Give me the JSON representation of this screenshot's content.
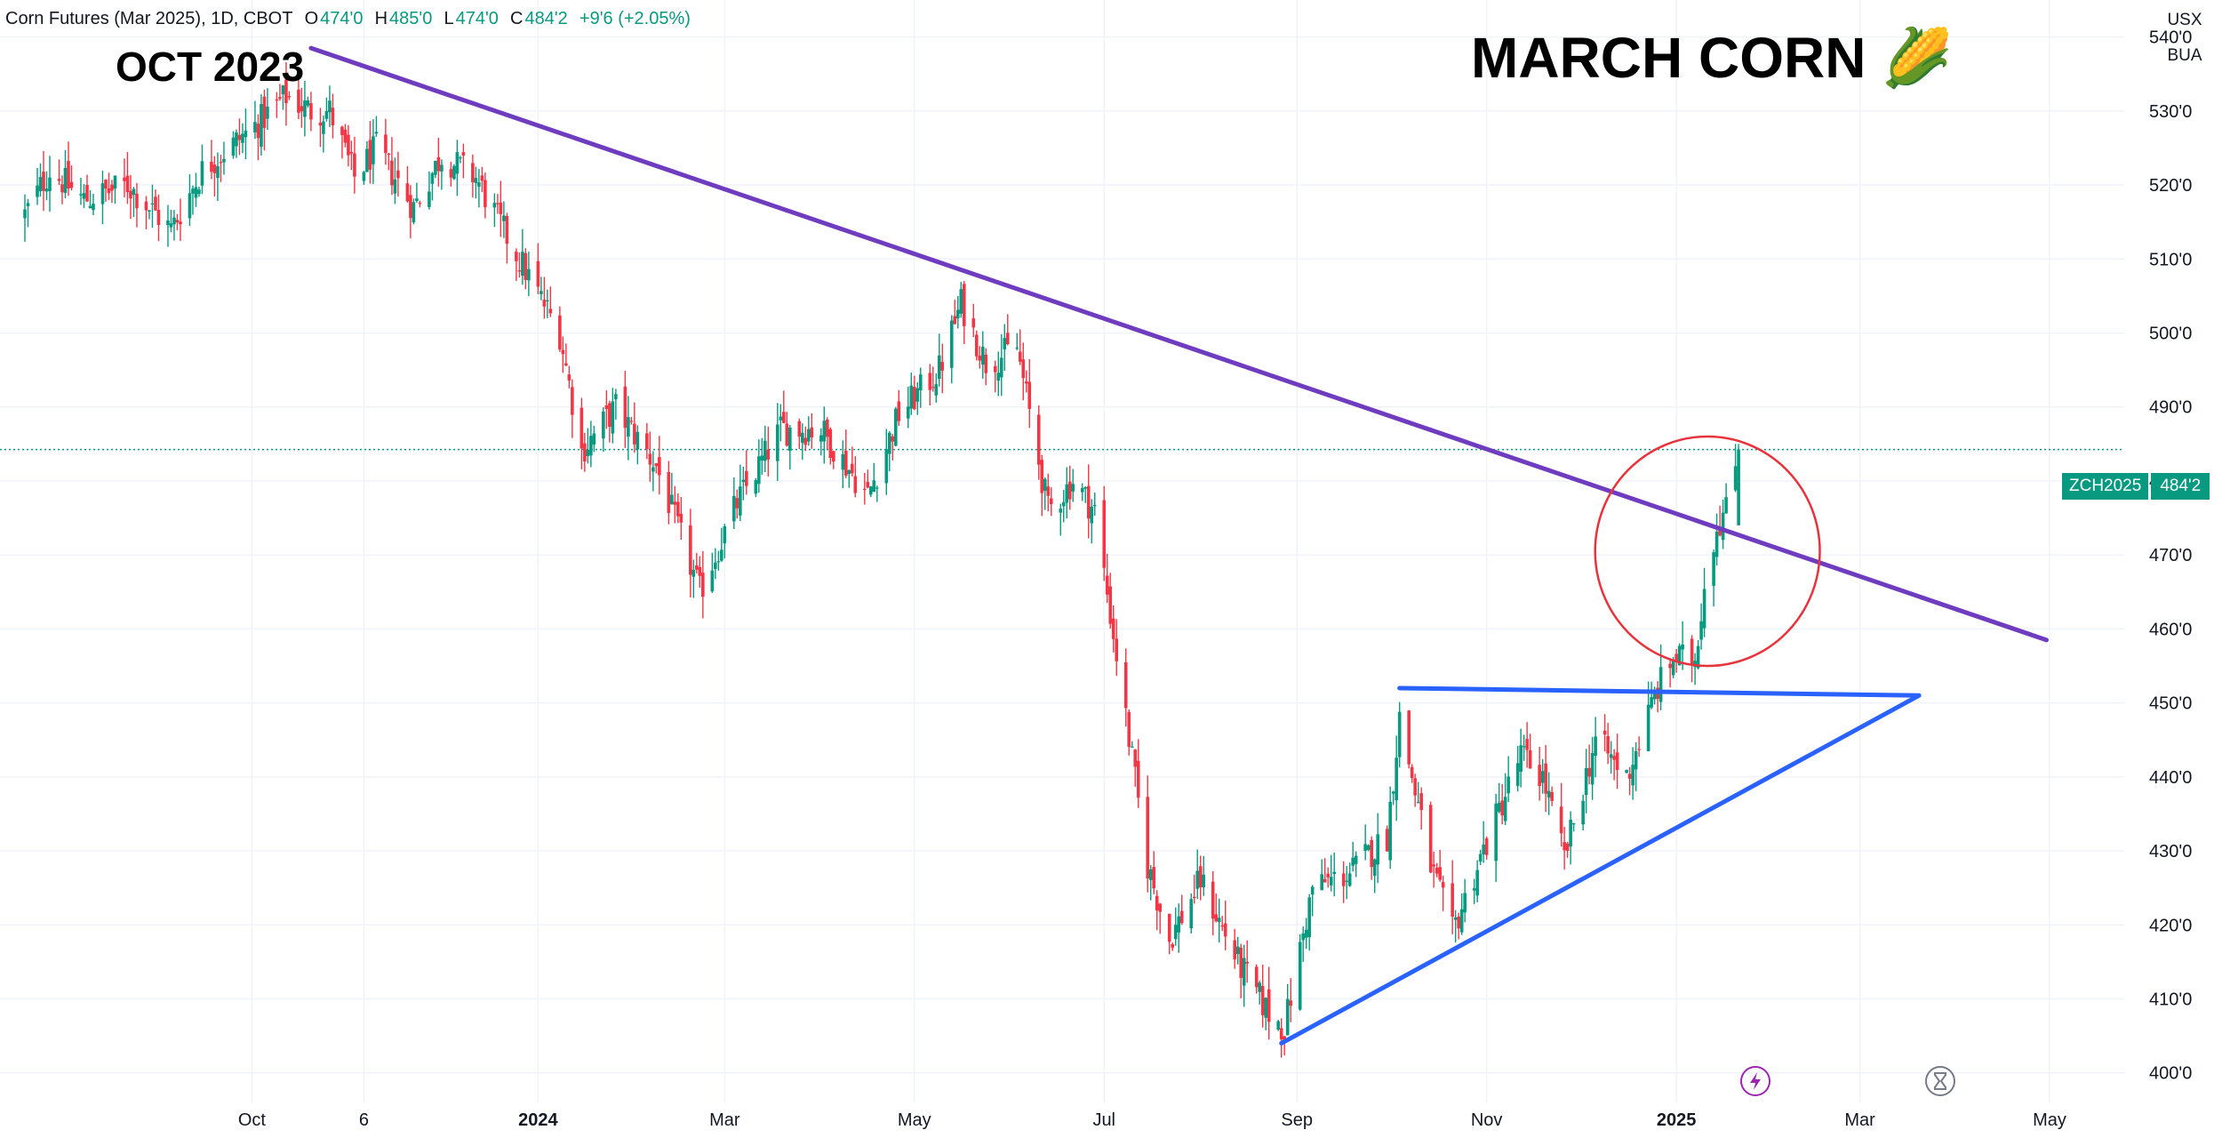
{
  "header": {
    "symbol_text": "Corn Futures (Mar 2025), 1D, CBOT",
    "o_label": "O",
    "o_value": "474'0",
    "h_label": "H",
    "h_value": "485'0",
    "l_label": "L",
    "l_value": "474'0",
    "c_label": "C",
    "c_value": "484'2",
    "change": "+9'6 (+2.05%)"
  },
  "top_right": {
    "currency": "USX",
    "unit": "BUA"
  },
  "annotations": {
    "left": "OCT 2023",
    "right": "MARCH CORN",
    "right_emoji": "🌽"
  },
  "price_tag": {
    "symbol": "ZCH2025",
    "value": "484'2"
  },
  "colors": {
    "up": "#089981",
    "down": "#f23645",
    "trend_purple": "#6f3cc0",
    "trend_blue": "#2962ff",
    "circle": "#e8323c",
    "grid": "#f0f3fa",
    "text": "#131722"
  },
  "icons": {
    "flash": "lightning-icon",
    "hourglass": "hourglass-icon"
  },
  "chart_data": {
    "type": "candlestick",
    "title": "Corn Futures (Mar 2025), 1D, CBOT",
    "xlabel": "",
    "ylabel": "",
    "ylim": [
      396,
      545
    ],
    "y_ticks": [
      {
        "v": 540,
        "label": "540'0"
      },
      {
        "v": 530,
        "label": "530'0"
      },
      {
        "v": 520,
        "label": "520'0"
      },
      {
        "v": 510,
        "label": "510'0"
      },
      {
        "v": 500,
        "label": "500'0"
      },
      {
        "v": 490,
        "label": "490'0"
      },
      {
        "v": 480,
        "label": "480'0"
      },
      {
        "v": 470,
        "label": "470'0"
      },
      {
        "v": 460,
        "label": "460'0"
      },
      {
        "v": 450,
        "label": "450'0"
      },
      {
        "v": 440,
        "label": "440'0"
      },
      {
        "v": 430,
        "label": "430'0"
      },
      {
        "v": 420,
        "label": "420'0"
      },
      {
        "v": 410,
        "label": "410'0"
      },
      {
        "v": 400,
        "label": "400'0"
      }
    ],
    "x_ticks": [
      {
        "d": "2023-10-01",
        "label": "Oct",
        "bold": false
      },
      {
        "d": "2023-11-06",
        "label": "6",
        "bold": false
      },
      {
        "d": "2024-01-01",
        "label": "2024",
        "bold": true
      },
      {
        "d": "2024-03-01",
        "label": "Mar",
        "bold": false
      },
      {
        "d": "2024-05-01",
        "label": "May",
        "bold": false
      },
      {
        "d": "2024-07-01",
        "label": "Jul",
        "bold": false
      },
      {
        "d": "2024-09-01",
        "label": "Sep",
        "bold": false
      },
      {
        "d": "2024-11-01",
        "label": "Nov",
        "bold": false
      },
      {
        "d": "2025-01-01",
        "label": "2025",
        "bold": true
      },
      {
        "d": "2025-03-01",
        "label": "Mar",
        "bold": false
      },
      {
        "d": "2025-05-01",
        "label": "May",
        "bold": false
      }
    ],
    "xlim": [
      "2023-07-12",
      "2025-05-25"
    ],
    "last_price": 484.25,
    "anchors": [
      [
        "2023-07-20",
        516
      ],
      [
        "2023-07-28",
        522
      ],
      [
        "2023-08-08",
        518
      ],
      [
        "2023-08-22",
        520
      ],
      [
        "2023-09-05",
        514
      ],
      [
        "2023-09-15",
        522
      ],
      [
        "2023-10-02",
        528
      ],
      [
        "2023-10-12",
        532
      ],
      [
        "2023-10-20",
        530
      ],
      [
        "2023-10-26",
        530
      ],
      [
        "2023-11-03",
        521
      ],
      [
        "2023-11-10",
        525
      ],
      [
        "2023-11-22",
        517
      ],
      [
        "2023-12-01",
        524
      ],
      [
        "2023-12-12",
        521
      ],
      [
        "2023-12-22",
        513
      ],
      [
        "2024-01-08",
        500
      ],
      [
        "2024-01-15",
        484
      ],
      [
        "2024-01-26",
        490
      ],
      [
        "2024-02-08",
        482
      ],
      [
        "2024-02-22",
        465
      ],
      [
        "2024-03-05",
        477
      ],
      [
        "2024-03-19",
        487
      ],
      [
        "2024-04-01",
        487
      ],
      [
        "2024-04-16",
        478
      ],
      [
        "2024-04-26",
        489
      ],
      [
        "2024-05-09",
        495
      ],
      [
        "2024-05-16",
        504
      ],
      [
        "2024-05-24",
        496
      ],
      [
        "2024-06-03",
        498
      ],
      [
        "2024-06-13",
        476
      ],
      [
        "2024-06-21",
        480
      ],
      [
        "2024-06-28",
        476
      ],
      [
        "2024-07-08",
        448
      ],
      [
        "2024-07-15",
        428
      ],
      [
        "2024-07-22",
        418
      ],
      [
        "2024-08-01",
        426
      ],
      [
        "2024-08-13",
        415
      ],
      [
        "2024-08-23",
        408
      ],
      [
        "2024-08-28",
        406
      ],
      [
        "2024-09-06",
        425
      ],
      [
        "2024-09-18",
        427
      ],
      [
        "2024-09-30",
        432
      ],
      [
        "2024-10-04",
        448
      ],
      [
        "2024-10-14",
        428
      ],
      [
        "2024-10-21",
        419
      ],
      [
        "2024-10-30",
        429
      ],
      [
        "2024-11-12",
        443
      ],
      [
        "2024-11-19",
        440
      ],
      [
        "2024-11-26",
        429
      ],
      [
        "2024-12-06",
        445
      ],
      [
        "2024-12-16",
        440
      ],
      [
        "2024-12-26",
        452
      ],
      [
        "2024-12-31",
        456
      ],
      [
        "2025-01-07",
        456
      ],
      [
        "2025-01-10",
        466
      ],
      [
        "2025-01-14",
        474
      ],
      [
        "2025-01-17",
        476
      ],
      [
        "2025-01-21",
        484.25
      ]
    ],
    "trendlines": [
      {
        "name": "descending-trendline",
        "p1": [
          "2023-10-20",
          538.5
        ],
        "p2": [
          "2025-04-30",
          458.5
        ],
        "color": "#6f3cc0"
      },
      {
        "name": "triangle-top-line",
        "p1": [
          "2024-10-04",
          452
        ],
        "p2": [
          "2025-03-20",
          451
        ],
        "color": "#2962ff"
      },
      {
        "name": "triangle-bottom-line",
        "p1": [
          "2024-08-27",
          404
        ],
        "p2": [
          "2025-03-20",
          451
        ],
        "color": "#2962ff"
      }
    ],
    "highlight_circle": {
      "center": [
        "2025-01-11",
        470.5
      ],
      "ry": 15.5
    }
  }
}
